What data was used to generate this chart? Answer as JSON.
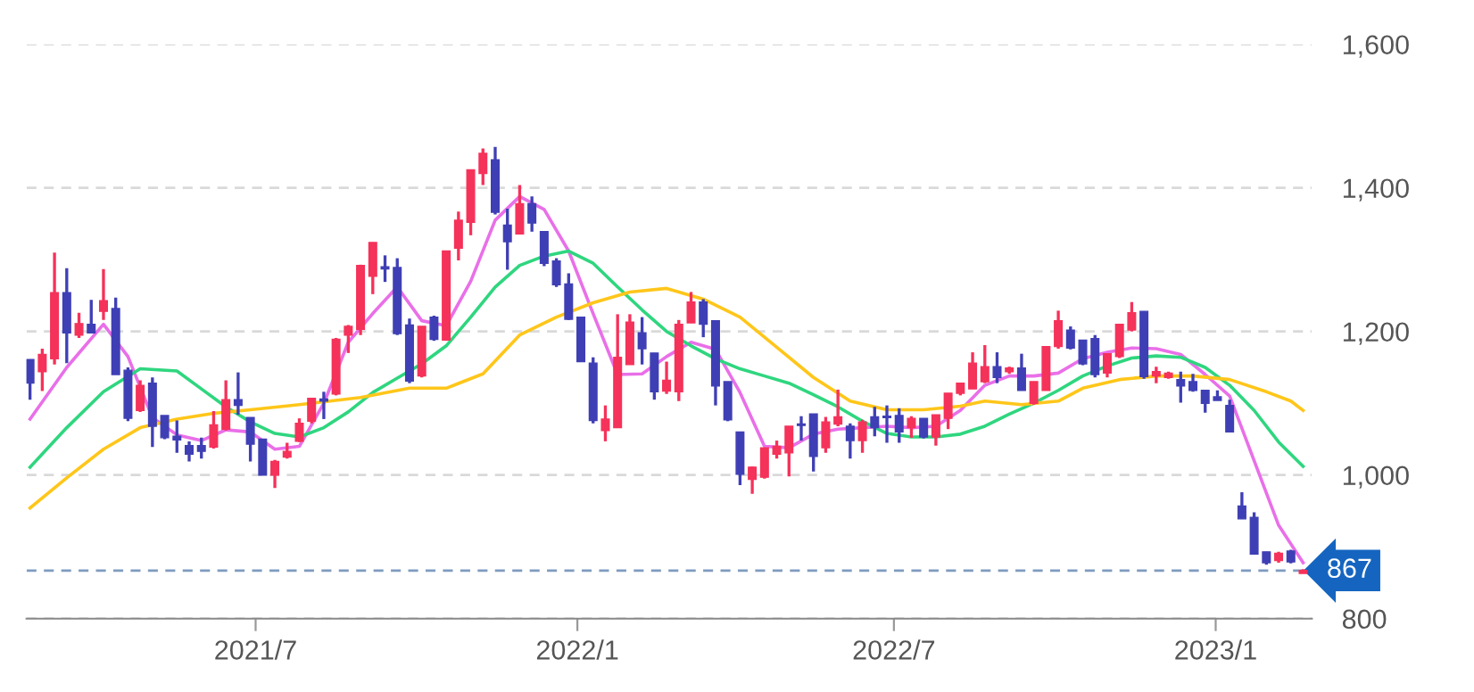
{
  "chart_data": {
    "type": "candlestick",
    "x": [
      "2021-02-22",
      "2021-03-01",
      "2021-03-08",
      "2021-03-15",
      "2021-03-22",
      "2021-03-29",
      "2021-04-05",
      "2021-04-12",
      "2021-04-19",
      "2021-04-26",
      "2021-05-03",
      "2021-05-10",
      "2021-05-17",
      "2021-05-24",
      "2021-05-31",
      "2021-06-07",
      "2021-06-14",
      "2021-06-21",
      "2021-06-28",
      "2021-07-05",
      "2021-07-12",
      "2021-07-19",
      "2021-07-26",
      "2021-08-02",
      "2021-08-09",
      "2021-08-16",
      "2021-08-23",
      "2021-08-30",
      "2021-09-06",
      "2021-09-13",
      "2021-09-20",
      "2021-09-27",
      "2021-10-04",
      "2021-10-11",
      "2021-10-18",
      "2021-10-25",
      "2021-11-01",
      "2021-11-08",
      "2021-11-15",
      "2021-11-22",
      "2021-11-29",
      "2021-12-06",
      "2021-12-13",
      "2021-12-20",
      "2021-12-27",
      "2022-01-03",
      "2022-01-10",
      "2022-01-17",
      "2022-01-24",
      "2022-01-31",
      "2022-02-07",
      "2022-02-14",
      "2022-02-21",
      "2022-02-28",
      "2022-03-07",
      "2022-03-14",
      "2022-03-21",
      "2022-03-28",
      "2022-04-04",
      "2022-04-11",
      "2022-04-18",
      "2022-04-25",
      "2022-05-02",
      "2022-05-09",
      "2022-05-16",
      "2022-05-23",
      "2022-05-30",
      "2022-06-06",
      "2022-06-13",
      "2022-06-20",
      "2022-06-27",
      "2022-07-04",
      "2022-07-11",
      "2022-07-18",
      "2022-07-25",
      "2022-08-01",
      "2022-08-08",
      "2022-08-15",
      "2022-08-22",
      "2022-08-29",
      "2022-09-05",
      "2022-09-12",
      "2022-09-19",
      "2022-09-26",
      "2022-10-03",
      "2022-10-10",
      "2022-10-17",
      "2022-10-24",
      "2022-10-31",
      "2022-11-07",
      "2022-11-14",
      "2022-11-21",
      "2022-11-28",
      "2022-12-05",
      "2022-12-12",
      "2022-12-19",
      "2022-12-26",
      "2023-01-02",
      "2023-01-09",
      "2023-01-16",
      "2023-01-23",
      "2023-01-30",
      "2023-02-06",
      "2023-02-13",
      "2023-02-20"
    ],
    "ohlc": [
      [
        1161,
        1161,
        1105,
        1128
      ],
      [
        1144,
        1176,
        1117,
        1168
      ],
      [
        1162,
        1310,
        1154,
        1254
      ],
      [
        1254,
        1288,
        1156,
        1198
      ],
      [
        1195,
        1226,
        1191,
        1211
      ],
      [
        1210,
        1244,
        1198,
        1198
      ],
      [
        1228,
        1287,
        1216,
        1243
      ],
      [
        1232,
        1247,
        1140,
        1140
      ],
      [
        1146,
        1150,
        1075,
        1079
      ],
      [
        1090,
        1132,
        1088,
        1125
      ],
      [
        1128,
        1136,
        1039,
        1068
      ],
      [
        1083,
        1083,
        1050,
        1052
      ],
      [
        1054,
        1076,
        1031,
        1049
      ],
      [
        1041,
        1047,
        1019,
        1029
      ],
      [
        1041,
        1052,
        1023,
        1033
      ],
      [
        1039,
        1089,
        1037,
        1070
      ],
      [
        1064,
        1132,
        1062,
        1105
      ],
      [
        1105,
        1143,
        1084,
        1097
      ],
      [
        1080,
        1080,
        1019,
        1043
      ],
      [
        1050,
        1050,
        1000,
        1000
      ],
      [
        1000,
        1021,
        982,
        1019
      ],
      [
        1025,
        1045,
        1023,
        1033
      ],
      [
        1047,
        1079,
        1046,
        1072
      ],
      [
        1075,
        1107,
        1072,
        1107
      ],
      [
        1106,
        1116,
        1078,
        1103
      ],
      [
        1113,
        1191,
        1111,
        1189
      ],
      [
        1195,
        1209,
        1170,
        1207
      ],
      [
        1203,
        1293,
        1195,
        1292
      ],
      [
        1277,
        1324,
        1252,
        1324
      ],
      [
        1290,
        1306,
        1269,
        1287
      ],
      [
        1289,
        1302,
        1195,
        1197
      ],
      [
        1209,
        1218,
        1128,
        1131
      ],
      [
        1138,
        1207,
        1136,
        1207
      ],
      [
        1220,
        1222,
        1187,
        1189
      ],
      [
        1188,
        1312,
        1187,
        1312
      ],
      [
        1316,
        1367,
        1299,
        1355
      ],
      [
        1352,
        1425,
        1334,
        1425
      ],
      [
        1420,
        1455,
        1404,
        1448
      ],
      [
        1439,
        1457,
        1363,
        1366
      ],
      [
        1348,
        1371,
        1286,
        1325
      ],
      [
        1336,
        1404,
        1336,
        1378
      ],
      [
        1378,
        1388,
        1339,
        1351
      ],
      [
        1339,
        1339,
        1291,
        1295
      ],
      [
        1298,
        1302,
        1262,
        1265
      ],
      [
        1266,
        1281,
        1216,
        1217
      ],
      [
        1220,
        1220,
        1158,
        1158
      ],
      [
        1156,
        1164,
        1072,
        1076
      ],
      [
        1062,
        1097,
        1047,
        1078
      ],
      [
        1066,
        1224,
        1066,
        1164
      ],
      [
        1154,
        1224,
        1154,
        1213
      ],
      [
        1198,
        1220,
        1154,
        1176
      ],
      [
        1170,
        1170,
        1105,
        1116
      ],
      [
        1117,
        1158,
        1113,
        1132
      ],
      [
        1116,
        1216,
        1103,
        1210
      ],
      [
        1212,
        1255,
        1212,
        1241
      ],
      [
        1241,
        1245,
        1192,
        1210
      ],
      [
        1215,
        1215,
        1097,
        1124
      ],
      [
        1130,
        1130,
        1075,
        1077
      ],
      [
        1060,
        1060,
        986,
        1001
      ],
      [
        994,
        1012,
        974,
        1011
      ],
      [
        997,
        1038,
        995,
        1038
      ],
      [
        1029,
        1048,
        1023,
        1040
      ],
      [
        1031,
        1068,
        998,
        1068
      ],
      [
        1071,
        1082,
        1048,
        1069
      ],
      [
        1085,
        1085,
        1005,
        1026
      ],
      [
        1038,
        1081,
        1031,
        1074
      ],
      [
        1071,
        1119,
        1068,
        1081
      ],
      [
        1068,
        1072,
        1023,
        1048
      ],
      [
        1048,
        1077,
        1031,
        1074
      ],
      [
        1081,
        1095,
        1054,
        1066
      ],
      [
        1082,
        1097,
        1045,
        1080
      ],
      [
        1083,
        1093,
        1045,
        1060
      ],
      [
        1066,
        1082,
        1052,
        1079
      ],
      [
        1079,
        1079,
        1051,
        1053
      ],
      [
        1053,
        1084,
        1041,
        1084
      ],
      [
        1079,
        1114,
        1064,
        1114
      ],
      [
        1114,
        1128,
        1111,
        1128
      ],
      [
        1120,
        1171,
        1120,
        1156
      ],
      [
        1130,
        1181,
        1128,
        1151
      ],
      [
        1151,
        1171,
        1128,
        1136
      ],
      [
        1144,
        1151,
        1141,
        1149
      ],
      [
        1149,
        1169,
        1118,
        1118
      ],
      [
        1100,
        1130,
        1098,
        1130
      ],
      [
        1118,
        1179,
        1118,
        1179
      ],
      [
        1179,
        1229,
        1176,
        1215
      ],
      [
        1202,
        1207,
        1175,
        1177
      ],
      [
        1188,
        1188,
        1153,
        1155
      ],
      [
        1190,
        1195,
        1136,
        1140
      ],
      [
        1142,
        1169,
        1136,
        1169
      ],
      [
        1165,
        1210,
        1163,
        1210
      ],
      [
        1202,
        1241,
        1200,
        1226
      ],
      [
        1228,
        1228,
        1134,
        1137
      ],
      [
        1138,
        1151,
        1128,
        1144
      ],
      [
        1136,
        1144,
        1134,
        1142
      ],
      [
        1133,
        1144,
        1101,
        1124
      ],
      [
        1130,
        1141,
        1116,
        1118
      ],
      [
        1118,
        1118,
        1087,
        1100
      ],
      [
        1109,
        1118,
        1104,
        1104
      ],
      [
        1097,
        1105,
        1060,
        1060
      ],
      [
        957,
        976,
        939,
        939
      ],
      [
        941,
        948,
        890,
        890
      ],
      [
        893,
        893,
        875,
        878
      ],
      [
        881,
        893,
        878,
        891
      ],
      [
        894,
        896,
        877,
        879
      ],
      [
        863,
        869,
        863,
        867
      ]
    ],
    "colors": [
      "#3f3fb5",
      "#f5325a",
      "#f5325a",
      "#3f3fb5",
      "#f5325a",
      "#3f3fb5",
      "#f5325a",
      "#3f3fb5",
      "#3f3fb5",
      "#f5325a",
      "#3f3fb5",
      "#3f3fb5",
      "#3f3fb5",
      "#3f3fb5",
      "#3f3fb5",
      "#f5325a",
      "#f5325a",
      "#3f3fb5",
      "#3f3fb5",
      "#3f3fb5",
      "#f5325a",
      "#f5325a",
      "#f5325a",
      "#f5325a",
      "#3f3fb5",
      "#f5325a",
      "#f5325a",
      "#f5325a",
      "#f5325a",
      "#3f3fb5",
      "#3f3fb5",
      "#3f3fb5",
      "#f5325a",
      "#3f3fb5",
      "#f5325a",
      "#f5325a",
      "#f5325a",
      "#f5325a",
      "#3f3fb5",
      "#3f3fb5",
      "#f5325a",
      "#3f3fb5",
      "#3f3fb5",
      "#3f3fb5",
      "#3f3fb5",
      "#3f3fb5",
      "#3f3fb5",
      "#f5325a",
      "#f5325a",
      "#f5325a",
      "#3f3fb5",
      "#3f3fb5",
      "#f5325a",
      "#f5325a",
      "#f5325a",
      "#3f3fb5",
      "#3f3fb5",
      "#3f3fb5",
      "#3f3fb5",
      "#f5325a",
      "#f5325a",
      "#f5325a",
      "#f5325a",
      "#3f3fb5",
      "#3f3fb5",
      "#f5325a",
      "#f5325a",
      "#3f3fb5",
      "#f5325a",
      "#3f3fb5",
      "#3f3fb5",
      "#3f3fb5",
      "#f5325a",
      "#3f3fb5",
      "#f5325a",
      "#f5325a",
      "#f5325a",
      "#f5325a",
      "#f5325a",
      "#3f3fb5",
      "#f5325a",
      "#3f3fb5",
      "#f5325a",
      "#f5325a",
      "#f5325a",
      "#3f3fb5",
      "#3f3fb5",
      "#3f3fb5",
      "#f5325a",
      "#f5325a",
      "#f5325a",
      "#3f3fb5",
      "#f5325a",
      "#f5325a",
      "#3f3fb5",
      "#3f3fb5",
      "#3f3fb5",
      "#3f3fb5",
      "#3f3fb5",
      "#3f3fb5",
      "#3f3fb5",
      "#3f3fb5",
      "#f5325a",
      "#3f3fb5",
      "#f5325a"
    ],
    "series": [
      {
        "type": "line",
        "color": "#e96fe8",
        "x": [
          "2021-02-22",
          "2021-03-15",
          "2021-04-05",
          "2021-04-19",
          "2021-05-03",
          "2021-05-17",
          "2021-05-31",
          "2021-06-14",
          "2021-06-28",
          "2021-07-12",
          "2021-07-26",
          "2021-08-09",
          "2021-08-23",
          "2021-09-06",
          "2021-09-20",
          "2021-10-04",
          "2021-10-18",
          "2021-11-01",
          "2021-11-15",
          "2021-11-29",
          "2021-12-13",
          "2021-12-27",
          "2022-01-10",
          "2022-01-24",
          "2022-02-07",
          "2022-02-21",
          "2022-03-07",
          "2022-03-21",
          "2022-04-04",
          "2022-04-18",
          "2022-05-02",
          "2022-05-16",
          "2022-05-30",
          "2022-06-13",
          "2022-06-27",
          "2022-07-11",
          "2022-07-25",
          "2022-08-08",
          "2022-08-22",
          "2022-09-05",
          "2022-09-19",
          "2022-10-03",
          "2022-10-17",
          "2022-10-31",
          "2022-11-14",
          "2022-11-28",
          "2022-12-12",
          "2022-12-26",
          "2023-01-09",
          "2023-01-23",
          "2023-02-06",
          "2023-02-20"
        ],
        "values": [
          1078,
          1150,
          1210,
          1165,
          1080,
          1056,
          1048,
          1063,
          1060,
          1036,
          1040,
          1100,
          1185,
          1225,
          1262,
          1215,
          1208,
          1270,
          1355,
          1388,
          1370,
          1312,
          1225,
          1140,
          1141,
          1165,
          1185,
          1175,
          1115,
          1040,
          1038,
          1057,
          1064,
          1066,
          1068,
          1066,
          1068,
          1090,
          1125,
          1138,
          1138,
          1142,
          1162,
          1171,
          1177,
          1176,
          1168,
          1140,
          1110,
          1020,
          930,
          878
        ]
      },
      {
        "type": "line",
        "color": "#2fd67f",
        "x": [
          "2021-02-22",
          "2021-03-15",
          "2021-04-05",
          "2021-04-26",
          "2021-05-17",
          "2021-05-31",
          "2021-06-14",
          "2021-06-28",
          "2021-07-12",
          "2021-07-26",
          "2021-08-09",
          "2021-08-23",
          "2021-09-06",
          "2021-09-20",
          "2021-10-04",
          "2021-10-18",
          "2021-11-01",
          "2021-11-15",
          "2021-11-29",
          "2021-12-13",
          "2021-12-27",
          "2022-01-10",
          "2022-01-24",
          "2022-02-07",
          "2022-02-21",
          "2022-03-07",
          "2022-03-21",
          "2022-04-04",
          "2022-04-18",
          "2022-05-02",
          "2022-05-16",
          "2022-05-30",
          "2022-06-13",
          "2022-06-27",
          "2022-07-11",
          "2022-07-25",
          "2022-08-08",
          "2022-08-22",
          "2022-09-05",
          "2022-09-19",
          "2022-10-03",
          "2022-10-17",
          "2022-10-31",
          "2022-11-14",
          "2022-11-28",
          "2022-12-12",
          "2022-12-26",
          "2023-01-09",
          "2023-01-23",
          "2023-02-06",
          "2023-02-20"
        ],
        "values": [
          1011,
          1066,
          1116,
          1148,
          1145,
          1120,
          1095,
          1074,
          1058,
          1053,
          1066,
          1088,
          1115,
          1135,
          1155,
          1180,
          1220,
          1262,
          1292,
          1305,
          1312,
          1295,
          1262,
          1230,
          1200,
          1180,
          1162,
          1148,
          1138,
          1128,
          1112,
          1095,
          1075,
          1058,
          1053,
          1053,
          1057,
          1068,
          1085,
          1100,
          1118,
          1138,
          1152,
          1163,
          1166,
          1164,
          1150,
          1125,
          1090,
          1046,
          1012
        ]
      },
      {
        "type": "line",
        "color": "#ffc61a",
        "x": [
          "2021-02-22",
          "2021-03-15",
          "2021-04-05",
          "2021-04-26",
          "2021-05-17",
          "2021-06-07",
          "2021-06-28",
          "2021-07-26",
          "2021-08-30",
          "2021-09-27",
          "2021-10-18",
          "2021-11-08",
          "2021-11-29",
          "2021-12-20",
          "2022-01-10",
          "2022-01-31",
          "2022-02-21",
          "2022-03-14",
          "2022-04-04",
          "2022-04-25",
          "2022-05-16",
          "2022-06-06",
          "2022-06-27",
          "2022-07-18",
          "2022-08-08",
          "2022-08-22",
          "2022-09-12",
          "2022-10-03",
          "2022-10-17",
          "2022-11-07",
          "2022-11-28",
          "2022-12-19",
          "2023-01-09",
          "2023-01-30",
          "2023-02-13",
          "2023-02-20"
        ],
        "values": [
          954,
          996,
          1036,
          1066,
          1078,
          1086,
          1091,
          1098,
          1108,
          1121,
          1121,
          1141,
          1195,
          1220,
          1240,
          1255,
          1260,
          1245,
          1220,
          1178,
          1136,
          1103,
          1091,
          1091,
          1096,
          1103,
          1098,
          1103,
          1121,
          1133,
          1138,
          1138,
          1133,
          1116,
          1103,
          1090
        ]
      }
    ],
    "ref_lines": [
      {
        "axis": "y",
        "value": 867,
        "label": "867",
        "color": "#7f9cc0",
        "line_style": "dashed"
      }
    ],
    "xlim": [
      "2021-02-20",
      "2023-02-25"
    ],
    "xticks": [
      {
        "value": "2021-07-01",
        "label": "2021/7"
      },
      {
        "value": "2022-01-01",
        "label": "2022/1"
      },
      {
        "value": "2022-07-01",
        "label": "2022/7"
      },
      {
        "value": "2023-01-01",
        "label": "2023/1"
      }
    ],
    "ylim": [
      800,
      1600
    ],
    "yticks": [
      800,
      {
        "value": 1000,
        "label": "1,000"
      },
      {
        "value": 1200,
        "label": "1,200"
      },
      {
        "value": 1400,
        "label": "1,400"
      },
      {
        "value": 1600,
        "label": "1,600"
      }
    ],
    "grid": "y"
  }
}
